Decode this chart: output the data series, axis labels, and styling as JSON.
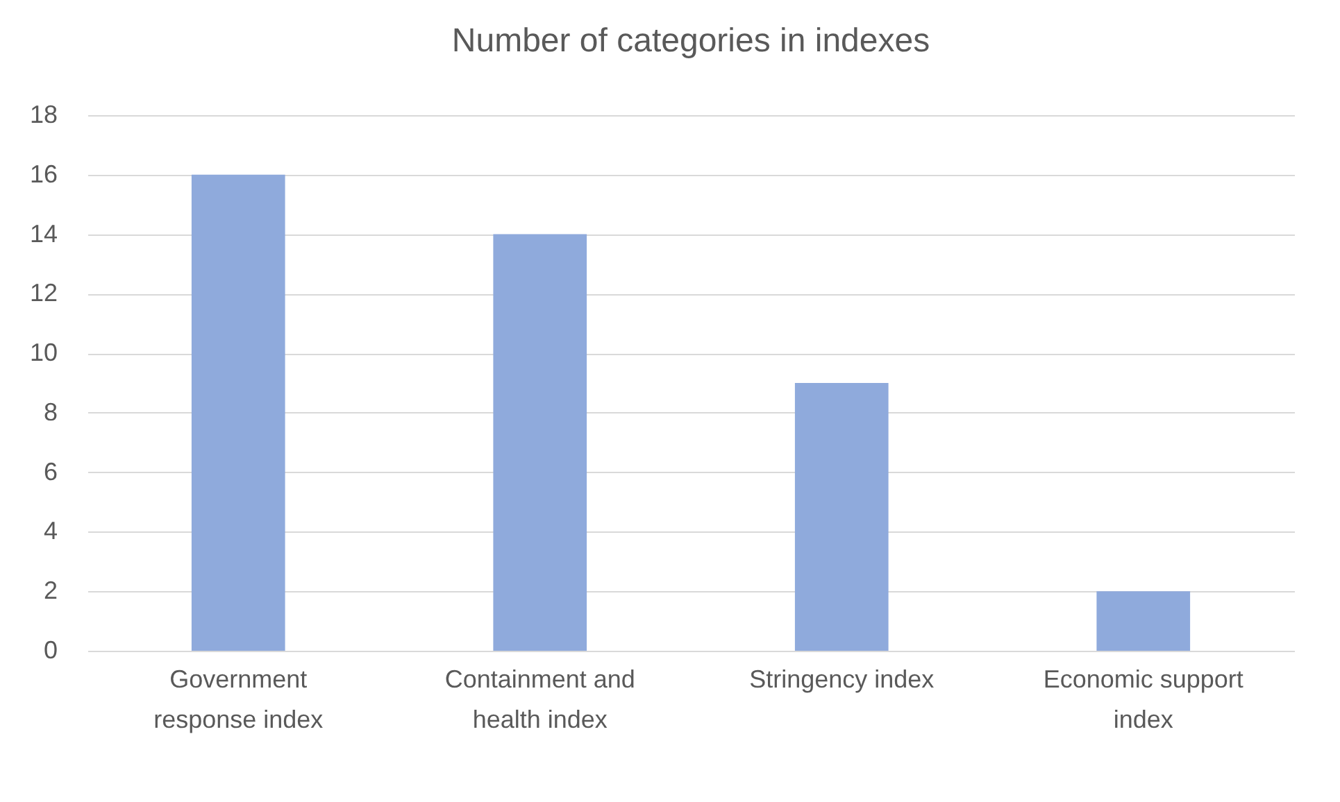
{
  "chart_data": {
    "type": "bar",
    "title": "Number of categories in indexes",
    "categories": [
      "Government response index",
      "Containment and health index",
      "Stringency index",
      "Economic support index"
    ],
    "values": [
      16,
      14,
      9,
      2
    ],
    "color": "#8faadc",
    "ylim": [
      0,
      18
    ],
    "yticks": [
      0,
      2,
      4,
      6,
      8,
      10,
      12,
      14,
      16,
      18
    ],
    "grid": "y"
  }
}
